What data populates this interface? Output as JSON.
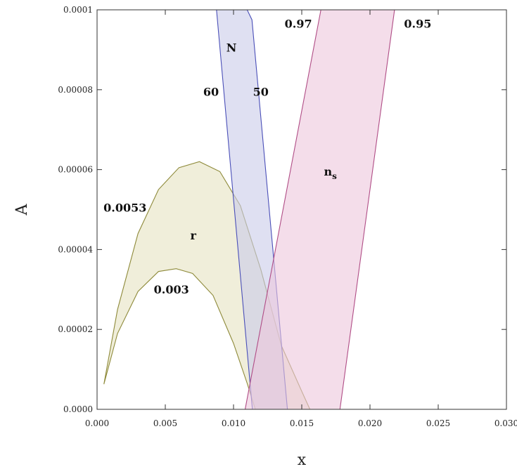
{
  "chart_data": {
    "type": "area",
    "title": "",
    "xlabel": "x",
    "ylabel": "A",
    "xlim": [
      0,
      0.03
    ],
    "ylim": [
      0,
      0.0001
    ],
    "grid": false,
    "x_ticks": [
      {
        "value": 0.0,
        "label": "0.000"
      },
      {
        "value": 0.005,
        "label": "0.005"
      },
      {
        "value": 0.01,
        "label": "0.010"
      },
      {
        "value": 0.015,
        "label": "0.015"
      },
      {
        "value": 0.02,
        "label": "0.020"
      },
      {
        "value": 0.025,
        "label": "0.025"
      },
      {
        "value": 0.03,
        "label": "0.030"
      }
    ],
    "y_ticks": [
      {
        "value": 0,
        "label": "0.0000"
      },
      {
        "value": 2e-05,
        "label": "0.00002"
      },
      {
        "value": 4e-05,
        "label": "0.00004"
      },
      {
        "value": 6e-05,
        "label": "0.00006"
      },
      {
        "value": 8e-05,
        "label": "0.00008"
      },
      {
        "value": 0.0001,
        "label": "0.0001"
      }
    ],
    "regions": [
      {
        "label": "r",
        "fill": "#e6e2c2",
        "stroke": "#8e8a3a",
        "label_pos": [
          0.00705,
          4.25e-05
        ],
        "boundaries": [
          {
            "label": "0.0053",
            "label_pos": [
              0.00205,
              4.95e-05
            ],
            "points": [
              [
                0.0005,
                6.3e-06
              ],
              [
                0.0015,
                2.5e-05
              ],
              [
                0.003,
                4.4e-05
              ],
              [
                0.0045,
                5.5e-05
              ],
              [
                0.006,
                6.05e-05
              ],
              [
                0.0075,
                6.2e-05
              ],
              [
                0.009,
                5.95e-05
              ],
              [
                0.0105,
                5.1e-05
              ],
              [
                0.012,
                3.5e-05
              ],
              [
                0.0135,
                1.6e-05
              ],
              [
                0.015,
                4.5e-06
              ],
              [
                0.0156,
                0.0
              ]
            ]
          },
          {
            "label": "0.003",
            "label_pos": [
              0.00545,
              2.9e-05
            ],
            "points": [
              [
                0.0005,
                6.3e-06
              ],
              [
                0.0015,
                1.9e-05
              ],
              [
                0.003,
                2.95e-05
              ],
              [
                0.0045,
                3.45e-05
              ],
              [
                0.0058,
                3.52e-05
              ],
              [
                0.007,
                3.4e-05
              ],
              [
                0.0085,
                2.85e-05
              ],
              [
                0.01,
                1.65e-05
              ],
              [
                0.011,
                6.5e-06
              ],
              [
                0.0116,
                0.0
              ]
            ]
          }
        ]
      },
      {
        "label": "N",
        "fill": "#c9cbea",
        "stroke": "#4a4fb8",
        "label_pos": [
          0.00985,
          8.95e-05
        ],
        "boundaries": [
          {
            "label": "60",
            "label_pos": [
              0.00835,
              7.85e-05
            ],
            "points": [
              [
                0.00875,
                0.0001
              ],
              [
                0.01138,
                0.0
              ]
            ]
          },
          {
            "label": "50",
            "label_pos": [
              0.012,
              7.85e-05
            ],
            "points": [
              [
                0.011,
                0.0001
              ],
              [
                0.01135,
                9.75e-05
              ],
              [
                0.01395,
                0.0
              ]
            ]
          }
        ]
      },
      {
        "label": "n_s",
        "fill": "#ecc7dc",
        "stroke": "#b04d86",
        "label_pos": [
          0.0171,
          5.85e-05
        ],
        "boundaries": [
          {
            "label": "0.97",
            "label_pos": [
              0.01475,
              9.55e-05
            ],
            "points": [
              [
                0.01085,
                0.0
              ],
              [
                0.0164,
                0.0001
              ]
            ]
          },
          {
            "label": "0.95",
            "label_pos": [
              0.0235,
              9.55e-05
            ],
            "points": [
              [
                0.0178,
                0.0
              ],
              [
                0.0218,
                0.0001
              ]
            ]
          }
        ]
      }
    ]
  }
}
